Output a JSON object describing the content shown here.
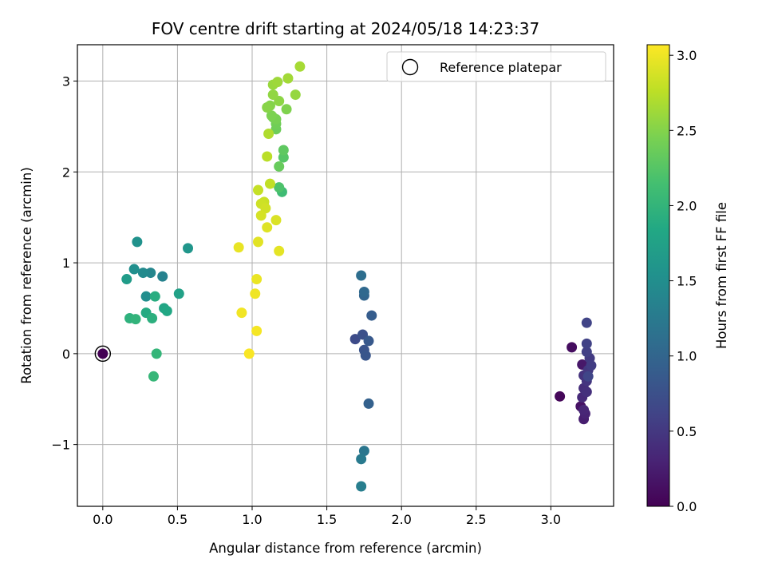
{
  "chart_data": {
    "type": "scatter",
    "title": "FOV centre drift starting at 2024/05/18 14:23:37",
    "xlabel": "Angular distance from reference (arcmin)",
    "ylabel": "Rotation from reference (arcmin)",
    "xlim": [
      -0.17,
      3.42
    ],
    "ylim": [
      -1.68,
      3.4
    ],
    "xticks": [
      0.0,
      0.5,
      1.0,
      1.5,
      2.0,
      2.5,
      3.0
    ],
    "xtick_labels": [
      "0.0",
      "0.5",
      "1.0",
      "1.5",
      "2.0",
      "2.5",
      "3.0"
    ],
    "yticks": [
      -1,
      0,
      1,
      2,
      3
    ],
    "ytick_labels": [
      "−1",
      "0",
      "1",
      "2",
      "3"
    ],
    "grid": true,
    "legend": {
      "placement": "top-right",
      "entries": [
        "Reference platepar"
      ]
    },
    "colorbar": {
      "label": "Hours from first FF file",
      "range": [
        0.0,
        3.07
      ],
      "ticks": [
        0.0,
        0.5,
        1.0,
        1.5,
        2.0,
        2.5,
        3.0
      ],
      "tick_labels": [
        "0.0",
        "0.5",
        "1.0",
        "1.5",
        "2.0",
        "2.5",
        "3.0"
      ],
      "colormap": "viridis"
    },
    "reference_point": {
      "x": 0.0,
      "y": 0.0
    },
    "points": [
      {
        "x": 0.0,
        "y": 0.0,
        "c": 0.0
      },
      {
        "x": 3.06,
        "y": -0.47,
        "c": 0.05
      },
      {
        "x": 3.14,
        "y": 0.07,
        "c": 0.1
      },
      {
        "x": 3.2,
        "y": -0.58,
        "c": 0.15
      },
      {
        "x": 3.21,
        "y": -0.12,
        "c": 0.2
      },
      {
        "x": 3.22,
        "y": -0.72,
        "c": 0.25
      },
      {
        "x": 3.23,
        "y": -0.66,
        "c": 0.3
      },
      {
        "x": 3.22,
        "y": -0.62,
        "c": 0.33
      },
      {
        "x": 3.21,
        "y": -0.48,
        "c": 0.37
      },
      {
        "x": 3.22,
        "y": -0.38,
        "c": 0.4
      },
      {
        "x": 3.24,
        "y": -0.42,
        "c": 0.42
      },
      {
        "x": 3.22,
        "y": -0.24,
        "c": 0.45
      },
      {
        "x": 3.24,
        "y": -0.3,
        "c": 0.47
      },
      {
        "x": 3.25,
        "y": -0.18,
        "c": 0.5
      },
      {
        "x": 3.26,
        "y": -0.05,
        "c": 0.52
      },
      {
        "x": 3.27,
        "y": -0.13,
        "c": 0.55
      },
      {
        "x": 3.24,
        "y": 0.02,
        "c": 0.58
      },
      {
        "x": 3.24,
        "y": 0.11,
        "c": 0.6
      },
      {
        "x": 3.24,
        "y": 0.34,
        "c": 0.62
      },
      {
        "x": 3.25,
        "y": -0.25,
        "c": 0.64
      },
      {
        "x": 1.69,
        "y": 0.16,
        "c": 0.7
      },
      {
        "x": 1.74,
        "y": 0.21,
        "c": 0.75
      },
      {
        "x": 1.75,
        "y": 0.04,
        "c": 0.8
      },
      {
        "x": 1.76,
        "y": -0.02,
        "c": 0.82
      },
      {
        "x": 1.78,
        "y": 0.14,
        "c": 0.85
      },
      {
        "x": 1.8,
        "y": 0.42,
        "c": 0.9
      },
      {
        "x": 1.78,
        "y": -0.55,
        "c": 0.95
      },
      {
        "x": 1.75,
        "y": 0.64,
        "c": 1.0
      },
      {
        "x": 1.75,
        "y": 0.68,
        "c": 1.05
      },
      {
        "x": 1.73,
        "y": 0.86,
        "c": 1.1
      },
      {
        "x": 1.75,
        "y": -1.07,
        "c": 1.2
      },
      {
        "x": 1.73,
        "y": -1.16,
        "c": 1.25
      },
      {
        "x": 1.73,
        "y": -1.46,
        "c": 1.3
      },
      {
        "x": 0.4,
        "y": 0.85,
        "c": 1.35
      },
      {
        "x": 0.32,
        "y": 0.89,
        "c": 1.4
      },
      {
        "x": 0.27,
        "y": 0.89,
        "c": 1.45
      },
      {
        "x": 0.29,
        "y": 0.63,
        "c": 1.5
      },
      {
        "x": 0.21,
        "y": 0.93,
        "c": 1.52
      },
      {
        "x": 0.23,
        "y": 1.23,
        "c": 1.55
      },
      {
        "x": 0.57,
        "y": 1.16,
        "c": 1.6
      },
      {
        "x": 0.16,
        "y": 0.82,
        "c": 1.68
      },
      {
        "x": 0.51,
        "y": 0.66,
        "c": 1.75
      },
      {
        "x": 0.41,
        "y": 0.5,
        "c": 1.8
      },
      {
        "x": 0.43,
        "y": 0.47,
        "c": 1.83
      },
      {
        "x": 0.29,
        "y": 0.45,
        "c": 1.87
      },
      {
        "x": 0.35,
        "y": 0.63,
        "c": 1.9
      },
      {
        "x": 0.33,
        "y": 0.39,
        "c": 1.93
      },
      {
        "x": 0.18,
        "y": 0.39,
        "c": 1.96
      },
      {
        "x": 0.22,
        "y": 0.38,
        "c": 1.99
      },
      {
        "x": 0.36,
        "y": 0.0,
        "c": 2.01
      },
      {
        "x": 0.34,
        "y": -0.25,
        "c": 2.03
      },
      {
        "x": 1.2,
        "y": 1.78,
        "c": 2.1
      },
      {
        "x": 1.18,
        "y": 1.83,
        "c": 2.2
      },
      {
        "x": 1.21,
        "y": 2.16,
        "c": 2.25
      },
      {
        "x": 1.21,
        "y": 2.24,
        "c": 2.3
      },
      {
        "x": 1.18,
        "y": 2.06,
        "c": 2.35
      },
      {
        "x": 1.16,
        "y": 2.47,
        "c": 2.38
      },
      {
        "x": 1.16,
        "y": 2.53,
        "c": 2.4
      },
      {
        "x": 1.14,
        "y": 2.6,
        "c": 2.42
      },
      {
        "x": 1.16,
        "y": 2.58,
        "c": 2.44
      },
      {
        "x": 1.13,
        "y": 2.62,
        "c": 2.46
      },
      {
        "x": 1.23,
        "y": 2.69,
        "c": 2.48
      },
      {
        "x": 1.12,
        "y": 2.73,
        "c": 2.5
      },
      {
        "x": 1.1,
        "y": 2.71,
        "c": 2.52
      },
      {
        "x": 1.18,
        "y": 2.78,
        "c": 2.54
      },
      {
        "x": 1.14,
        "y": 2.85,
        "c": 2.56
      },
      {
        "x": 1.29,
        "y": 2.85,
        "c": 2.58
      },
      {
        "x": 1.14,
        "y": 2.96,
        "c": 2.6
      },
      {
        "x": 1.17,
        "y": 2.99,
        "c": 2.62
      },
      {
        "x": 1.24,
        "y": 3.03,
        "c": 2.64
      },
      {
        "x": 1.32,
        "y": 3.16,
        "c": 2.66
      },
      {
        "x": 1.11,
        "y": 2.42,
        "c": 2.7
      },
      {
        "x": 1.1,
        "y": 2.17,
        "c": 2.75
      },
      {
        "x": 1.12,
        "y": 1.87,
        "c": 2.78
      },
      {
        "x": 1.04,
        "y": 1.8,
        "c": 2.8
      },
      {
        "x": 1.08,
        "y": 1.67,
        "c": 2.82
      },
      {
        "x": 1.06,
        "y": 1.65,
        "c": 2.84
      },
      {
        "x": 1.09,
        "y": 1.6,
        "c": 2.86
      },
      {
        "x": 1.06,
        "y": 1.52,
        "c": 2.88
      },
      {
        "x": 1.16,
        "y": 1.47,
        "c": 2.9
      },
      {
        "x": 1.1,
        "y": 1.39,
        "c": 2.92
      },
      {
        "x": 1.04,
        "y": 1.23,
        "c": 2.94
      },
      {
        "x": 1.18,
        "y": 1.13,
        "c": 2.95
      },
      {
        "x": 0.91,
        "y": 1.17,
        "c": 2.97
      },
      {
        "x": 1.03,
        "y": 0.82,
        "c": 2.98
      },
      {
        "x": 1.02,
        "y": 0.66,
        "c": 3.0
      },
      {
        "x": 0.93,
        "y": 0.45,
        "c": 3.01
      },
      {
        "x": 1.03,
        "y": 0.25,
        "c": 3.03
      },
      {
        "x": 0.98,
        "y": 0.0,
        "c": 3.05
      }
    ]
  }
}
